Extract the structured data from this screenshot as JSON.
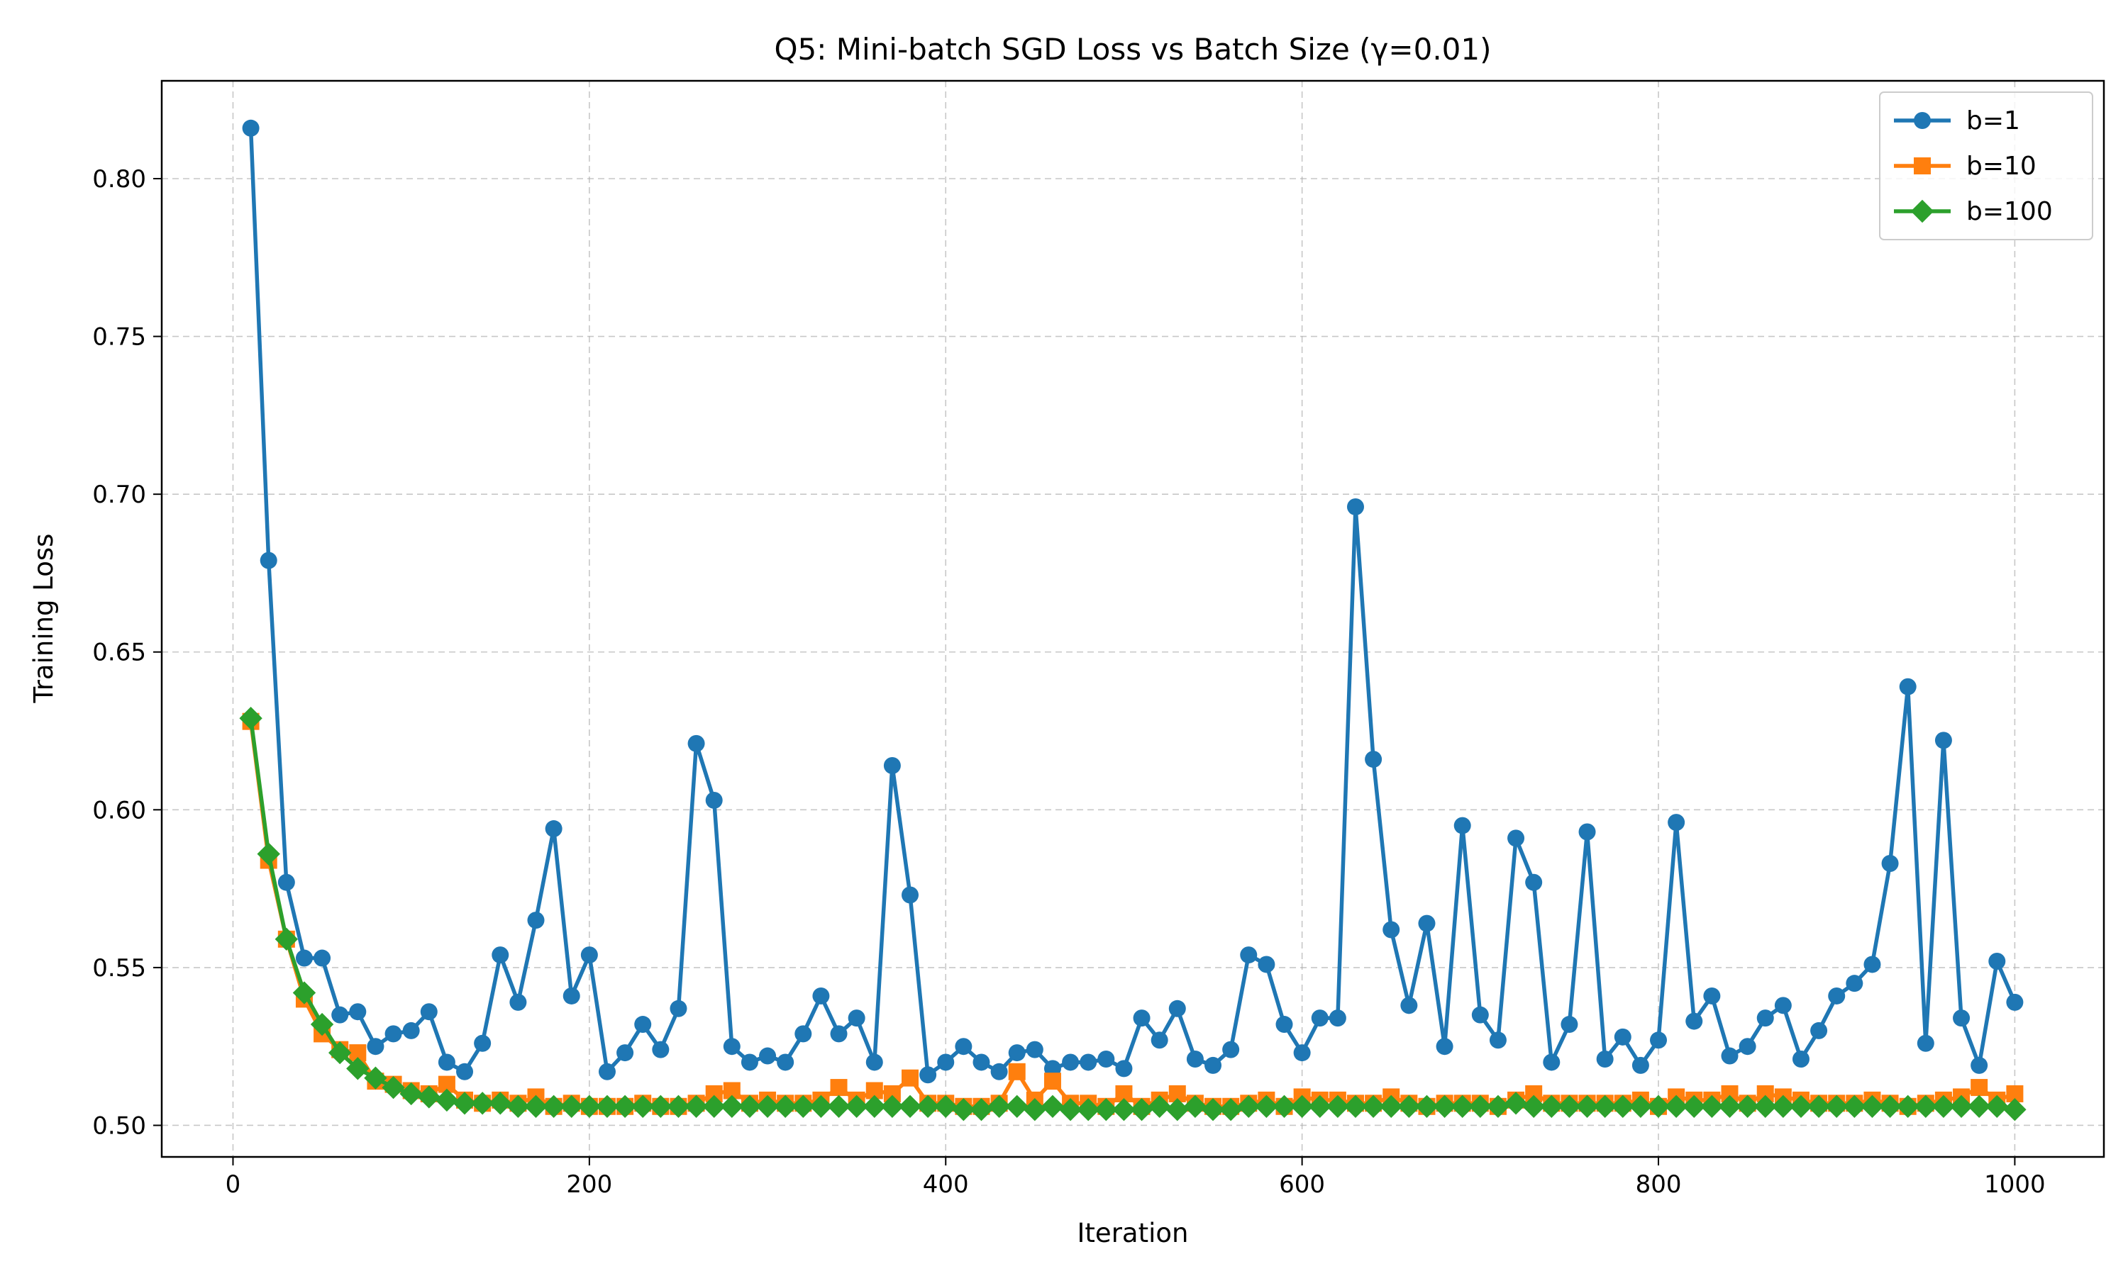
{
  "chart_data": {
    "type": "line",
    "title": "Q5: Mini-batch SGD Loss vs Batch Size (γ=0.01)",
    "xlabel": "Iteration",
    "ylabel": "Training Loss",
    "xlim": [
      -40,
      1050
    ],
    "ylim": [
      0.49,
      0.831
    ],
    "xticks": [
      0,
      200,
      400,
      600,
      800,
      1000
    ],
    "xtick_labels": [
      "0",
      "200",
      "400",
      "600",
      "800",
      "1000"
    ],
    "yticks": [
      0.5,
      0.55,
      0.6,
      0.65,
      0.7,
      0.75,
      0.8
    ],
    "ytick_labels": [
      "0.50",
      "0.55",
      "0.60",
      "0.65",
      "0.70",
      "0.75",
      "0.80"
    ],
    "grid": true,
    "legend_position": "top-right",
    "x": [
      10,
      20,
      30,
      40,
      50,
      60,
      70,
      80,
      90,
      100,
      110,
      120,
      130,
      140,
      150,
      160,
      170,
      180,
      190,
      200,
      210,
      220,
      230,
      240,
      250,
      260,
      270,
      280,
      290,
      300,
      310,
      320,
      330,
      340,
      350,
      360,
      370,
      380,
      390,
      400,
      410,
      420,
      430,
      440,
      450,
      460,
      470,
      480,
      490,
      500,
      510,
      520,
      530,
      540,
      550,
      560,
      570,
      580,
      590,
      600,
      610,
      620,
      630,
      640,
      650,
      660,
      670,
      680,
      690,
      700,
      710,
      720,
      730,
      740,
      750,
      760,
      770,
      780,
      790,
      800,
      810,
      820,
      830,
      840,
      850,
      860,
      870,
      880,
      890,
      900,
      910,
      920,
      930,
      940,
      950,
      960,
      970,
      980,
      990,
      1000
    ],
    "series": [
      {
        "name": "b=1",
        "color": "#1f77b4",
        "marker": "circle",
        "values": [
          0.816,
          0.679,
          0.577,
          0.553,
          0.553,
          0.535,
          0.536,
          0.525,
          0.529,
          0.53,
          0.536,
          0.52,
          0.517,
          0.526,
          0.554,
          0.539,
          0.565,
          0.594,
          0.541,
          0.554,
          0.517,
          0.523,
          0.532,
          0.524,
          0.537,
          0.621,
          0.603,
          0.525,
          0.52,
          0.522,
          0.52,
          0.529,
          0.541,
          0.529,
          0.534,
          0.52,
          0.614,
          0.573,
          0.516,
          0.52,
          0.525,
          0.52,
          0.517,
          0.523,
          0.524,
          0.518,
          0.52,
          0.52,
          0.521,
          0.518,
          0.534,
          0.527,
          0.537,
          0.521,
          0.519,
          0.524,
          0.554,
          0.551,
          0.532,
          0.523,
          0.534,
          0.534,
          0.696,
          0.616,
          0.562,
          0.538,
          0.564,
          0.525,
          0.595,
          0.535,
          0.527,
          0.591,
          0.577,
          0.52,
          0.532,
          0.593,
          0.521,
          0.528,
          0.519,
          0.527,
          0.596,
          0.533,
          0.541,
          0.522,
          0.525,
          0.534,
          0.538,
          0.521,
          0.53,
          0.541,
          0.545,
          0.551,
          0.583,
          0.639,
          0.526,
          0.622,
          0.534,
          0.519,
          0.552,
          0.539
        ]
      },
      {
        "name": "b=10",
        "color": "#ff7f0e",
        "marker": "square",
        "values": [
          0.628,
          0.584,
          0.559,
          0.54,
          0.529,
          0.524,
          0.523,
          0.514,
          0.513,
          0.511,
          0.51,
          0.513,
          0.508,
          0.507,
          0.508,
          0.507,
          0.509,
          0.506,
          0.507,
          0.506,
          0.506,
          0.506,
          0.507,
          0.506,
          0.506,
          0.507,
          0.51,
          0.511,
          0.507,
          0.508,
          0.507,
          0.507,
          0.508,
          0.512,
          0.508,
          0.511,
          0.51,
          0.515,
          0.507,
          0.507,
          0.506,
          0.506,
          0.507,
          0.517,
          0.508,
          0.514,
          0.507,
          0.507,
          0.506,
          0.51,
          0.506,
          0.508,
          0.51,
          0.507,
          0.506,
          0.506,
          0.507,
          0.508,
          0.506,
          0.509,
          0.508,
          0.508,
          0.507,
          0.507,
          0.509,
          0.507,
          0.506,
          0.507,
          0.507,
          0.507,
          0.506,
          0.508,
          0.51,
          0.507,
          0.507,
          0.507,
          0.507,
          0.507,
          0.508,
          0.506,
          0.509,
          0.508,
          0.508,
          0.51,
          0.507,
          0.51,
          0.509,
          0.508,
          0.507,
          0.507,
          0.507,
          0.508,
          0.507,
          0.506,
          0.507,
          0.508,
          0.509,
          0.512,
          0.508,
          0.51
        ]
      },
      {
        "name": "b=100",
        "color": "#2ca02c",
        "marker": "diamond",
        "values": [
          0.629,
          0.586,
          0.559,
          0.542,
          0.532,
          0.523,
          0.518,
          0.515,
          0.512,
          0.51,
          0.509,
          0.508,
          0.507,
          0.507,
          0.507,
          0.506,
          0.506,
          0.506,
          0.506,
          0.506,
          0.506,
          0.506,
          0.506,
          0.506,
          0.506,
          0.506,
          0.506,
          0.506,
          0.506,
          0.506,
          0.506,
          0.506,
          0.506,
          0.506,
          0.506,
          0.506,
          0.506,
          0.506,
          0.506,
          0.506,
          0.505,
          0.505,
          0.506,
          0.506,
          0.505,
          0.506,
          0.505,
          0.505,
          0.505,
          0.505,
          0.505,
          0.506,
          0.505,
          0.506,
          0.505,
          0.505,
          0.506,
          0.506,
          0.506,
          0.506,
          0.506,
          0.506,
          0.506,
          0.506,
          0.506,
          0.506,
          0.506,
          0.506,
          0.506,
          0.506,
          0.506,
          0.507,
          0.506,
          0.506,
          0.506,
          0.506,
          0.506,
          0.506,
          0.506,
          0.506,
          0.506,
          0.506,
          0.506,
          0.506,
          0.506,
          0.506,
          0.506,
          0.506,
          0.506,
          0.506,
          0.506,
          0.506,
          0.506,
          0.506,
          0.506,
          0.506,
          0.506,
          0.506,
          0.506,
          0.505
        ]
      }
    ]
  }
}
